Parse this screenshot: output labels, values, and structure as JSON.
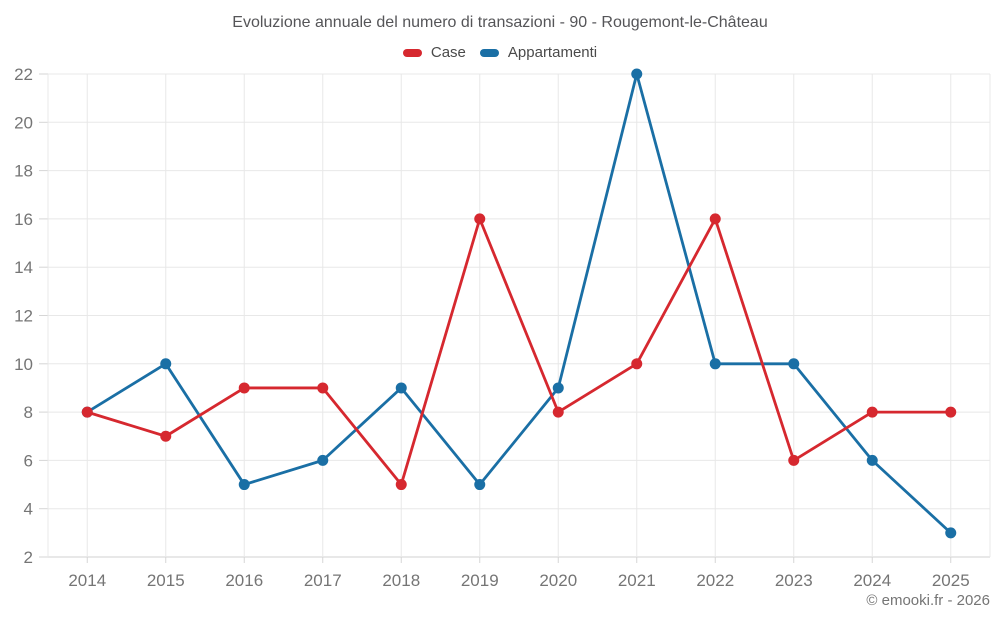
{
  "header": {
    "title": "Evoluzione annuale del numero di transazioni - 90 - Rougemont-le-Château"
  },
  "footer": {
    "credit": "© emooki.fr - 2026"
  },
  "chart_data": {
    "type": "line",
    "title": "Evoluzione annuale del numero di transazioni - 90 - Rougemont-le-Château",
    "xlabel": "",
    "ylabel": "",
    "categories": [
      "2014",
      "2015",
      "2016",
      "2017",
      "2018",
      "2019",
      "2020",
      "2021",
      "2022",
      "2023",
      "2024",
      "2025"
    ],
    "series": [
      {
        "name": "Case",
        "color": "#d6282f",
        "values": [
          8,
          7,
          9,
          9,
          5,
          16,
          8,
          10,
          16,
          6,
          8,
          8
        ]
      },
      {
        "name": "Appartamenti",
        "color": "#1a6fa5",
        "values": [
          8,
          10,
          5,
          6,
          9,
          5,
          9,
          22,
          10,
          10,
          6,
          3
        ]
      }
    ],
    "ylim": [
      2,
      22
    ],
    "yticks": [
      2,
      4,
      6,
      8,
      10,
      12,
      14,
      16,
      18,
      20,
      22
    ],
    "grid": true,
    "legend_position": "top",
    "marker": "circle",
    "axis_label_color": "#757575",
    "grid_color": "#e8e8e8",
    "tick_color": "#d6d6d6",
    "axis_line_color": "#d0d0d0"
  }
}
